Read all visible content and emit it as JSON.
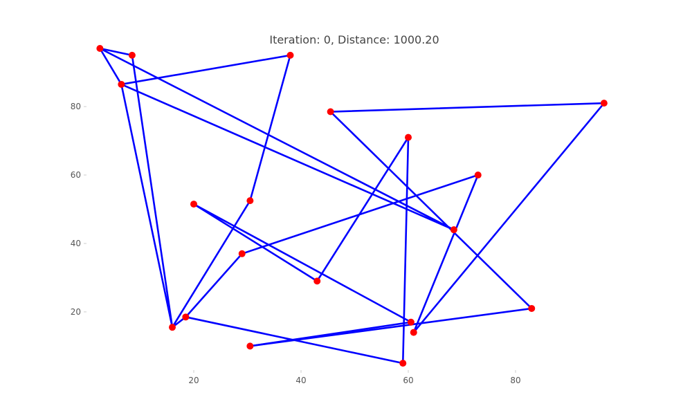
{
  "chart_data": {
    "type": "line",
    "title": "Iteration: 0, Distance: 1000.20",
    "xlabel": "",
    "ylabel": "",
    "xlim": [
      0,
      100
    ],
    "ylim": [
      3,
      97
    ],
    "x_ticks": [
      20,
      40,
      60,
      80
    ],
    "y_ticks": [
      20,
      40,
      60,
      80
    ],
    "grid": false,
    "series": [
      {
        "marker_color": "#ff0000",
        "line_color": "#0000ff",
        "points": [
          {
            "x": 2.5,
            "y": 97
          },
          {
            "x": 8.5,
            "y": 95
          },
          {
            "x": 16.0,
            "y": 15.5
          },
          {
            "x": 30.5,
            "y": 52.5
          },
          {
            "x": 38.0,
            "y": 95
          },
          {
            "x": 6.5,
            "y": 86.5
          },
          {
            "x": 68.5,
            "y": 44
          },
          {
            "x": 2.5,
            "y": 97
          },
          {
            "x": 6.5,
            "y": 86.5
          },
          {
            "x": 16.0,
            "y": 15.5
          },
          {
            "x": 18.5,
            "y": 18.5
          },
          {
            "x": 29.0,
            "y": 37
          },
          {
            "x": 73.0,
            "y": 60
          },
          {
            "x": 61.0,
            "y": 14
          },
          {
            "x": 96.5,
            "y": 81
          },
          {
            "x": 45.5,
            "y": 78.5
          },
          {
            "x": 83.0,
            "y": 21
          },
          {
            "x": 30.5,
            "y": 10
          },
          {
            "x": 60.5,
            "y": 17
          },
          {
            "x": 20.0,
            "y": 51.5
          },
          {
            "x": 43.0,
            "y": 29
          },
          {
            "x": 60.0,
            "y": 71
          },
          {
            "x": 59.0,
            "y": 5
          },
          {
            "x": 18.5,
            "y": 18.5
          }
        ]
      }
    ]
  }
}
